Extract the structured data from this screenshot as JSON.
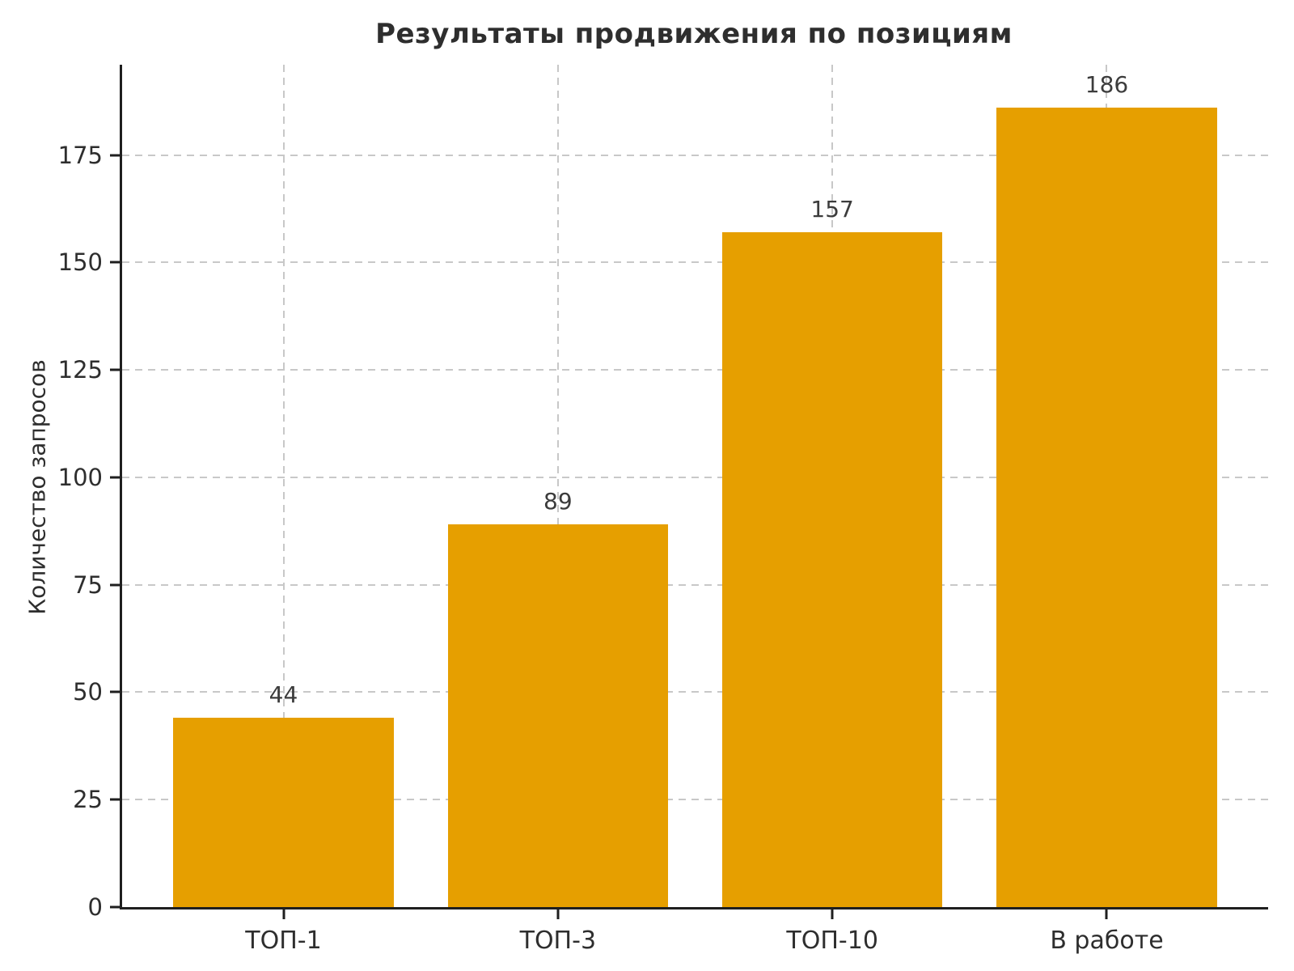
{
  "chart_data": {
    "type": "bar",
    "title": "Результаты продвижения по позициям",
    "xlabel": "",
    "ylabel": "Количество запросов",
    "categories": [
      "ТОП-1",
      "ТОП-3",
      "ТОП-10",
      "В работе"
    ],
    "values": [
      44,
      89,
      157,
      186
    ],
    "value_labels": [
      "44",
      "89",
      "157",
      "186"
    ],
    "yticks": [
      0,
      25,
      50,
      75,
      100,
      125,
      150,
      175
    ],
    "ylim": [
      0,
      196
    ],
    "grid": "dashed, horizontal at yticks and vertical at bar centers, behind bars",
    "legend": "none"
  },
  "style": {
    "bar_color": "#E69F00",
    "grid_color": "#c8c8c8",
    "axis_color": "#1f1f1f",
    "title_color": "#2e2e2e",
    "tick_label_color": "#2e2e2e",
    "value_label_color": "#3c3c3c",
    "background": "#ffffff"
  }
}
